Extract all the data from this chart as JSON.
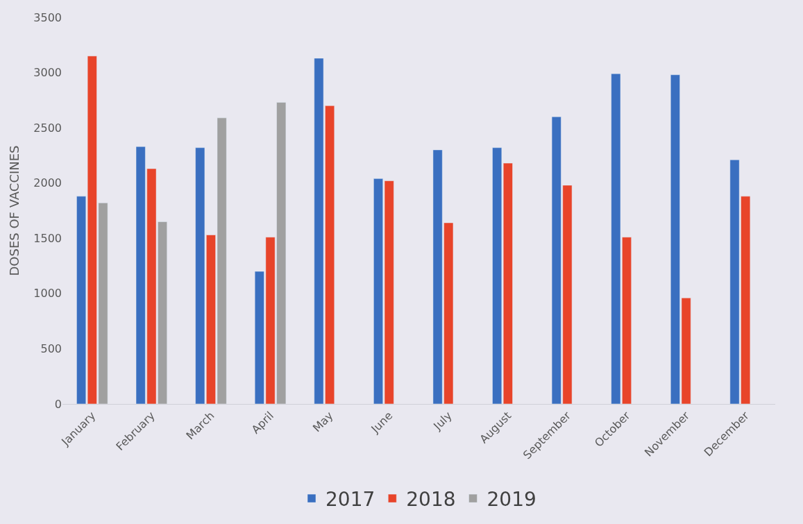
{
  "chart_data": {
    "type": "bar",
    "ylabel": "DOSES OF VACCINES",
    "categories": [
      "January",
      "February",
      "March",
      "April",
      "May",
      "June",
      "July",
      "August",
      "September",
      "October",
      "November",
      "December"
    ],
    "series": [
      {
        "name": "2017",
        "color": "#3a6fc0",
        "values": [
          1880,
          2330,
          2320,
          1200,
          3130,
          2040,
          2300,
          2320,
          2600,
          2990,
          2980,
          2210
        ]
      },
      {
        "name": "2018",
        "color": "#e8442a",
        "values": [
          3150,
          2130,
          1530,
          1510,
          2700,
          2020,
          1640,
          2180,
          1980,
          1510,
          960,
          1880
        ]
      },
      {
        "name": "2019",
        "color": "#a0a0a0",
        "values": [
          1820,
          1650,
          2590,
          2730,
          null,
          null,
          null,
          null,
          null,
          null,
          null,
          null
        ]
      }
    ],
    "ylim": [
      0,
      3500
    ],
    "yticks": [
      0,
      500,
      1000,
      1500,
      2000,
      2500,
      3000,
      3500
    ],
    "grid": false,
    "legend": "bottom"
  }
}
